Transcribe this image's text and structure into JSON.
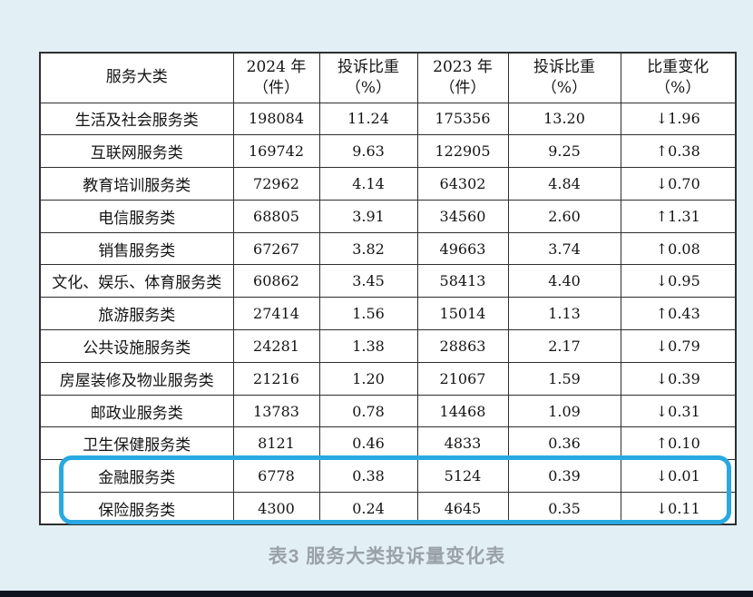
{
  "colors": {
    "page_bg": "#e2eff4",
    "table_border": "#2e2e2e",
    "highlight": "#29a9e2",
    "caption_text": "#9aa2a8",
    "bottom_bar": "#10131f",
    "text": "#141414"
  },
  "caption": "表3 服务大类投诉量变化表",
  "table": {
    "headers": [
      {
        "line1": "服务大类",
        "line2": ""
      },
      {
        "line1": "2024 年",
        "line2": "（件）"
      },
      {
        "line1": "投诉比重",
        "line2": "（%）"
      },
      {
        "line1": "2023 年",
        "line2": "（件）"
      },
      {
        "line1": "投诉比重",
        "line2": "（%）"
      },
      {
        "line1": "比重变化",
        "line2": "（%）"
      }
    ],
    "rows": [
      {
        "category": "生活及社会服务类",
        "y2024": "198084",
        "share2024": "11.24",
        "y2023": "175356",
        "share2023": "13.20",
        "change": "↓1.96"
      },
      {
        "category": "互联网服务类",
        "y2024": "169742",
        "share2024": "9.63",
        "y2023": "122905",
        "share2023": "9.25",
        "change": "↑0.38"
      },
      {
        "category": "教育培训服务类",
        "y2024": "72962",
        "share2024": "4.14",
        "y2023": "64302",
        "share2023": "4.84",
        "change": "↓0.70"
      },
      {
        "category": "电信服务类",
        "y2024": "68805",
        "share2024": "3.91",
        "y2023": "34560",
        "share2023": "2.60",
        "change": "↑1.31"
      },
      {
        "category": "销售服务类",
        "y2024": "67267",
        "share2024": "3.82",
        "y2023": "49663",
        "share2023": "3.74",
        "change": "↑0.08"
      },
      {
        "category": "文化、娱乐、体育服务类",
        "y2024": "60862",
        "share2024": "3.45",
        "y2023": "58413",
        "share2023": "4.40",
        "change": "↓0.95"
      },
      {
        "category": "旅游服务类",
        "y2024": "27414",
        "share2024": "1.56",
        "y2023": "15014",
        "share2023": "1.13",
        "change": "↑0.43"
      },
      {
        "category": "公共设施服务类",
        "y2024": "24281",
        "share2024": "1.38",
        "y2023": "28863",
        "share2023": "2.17",
        "change": "↓0.79"
      },
      {
        "category": "房屋装修及物业服务类",
        "y2024": "21216",
        "share2024": "1.20",
        "y2023": "21067",
        "share2023": "1.59",
        "change": "↓0.39"
      },
      {
        "category": "邮政业服务类",
        "y2024": "13783",
        "share2024": "0.78",
        "y2023": "14468",
        "share2023": "1.09",
        "change": "↓0.31"
      },
      {
        "category": "卫生保健服务类",
        "y2024": "8121",
        "share2024": "0.46",
        "y2023": "4833",
        "share2023": "0.36",
        "change": "↑0.10"
      },
      {
        "category": "金融服务类",
        "y2024": "6778",
        "share2024": "0.38",
        "y2023": "5124",
        "share2023": "0.39",
        "change": "↓0.01"
      },
      {
        "category": "保险服务类",
        "y2024": "4300",
        "share2024": "0.24",
        "y2023": "4645",
        "share2023": "0.35",
        "change": "↓0.11"
      }
    ]
  },
  "highlight": {
    "highlighted_rows": [
      "金融服务类",
      "保险服务类"
    ]
  }
}
